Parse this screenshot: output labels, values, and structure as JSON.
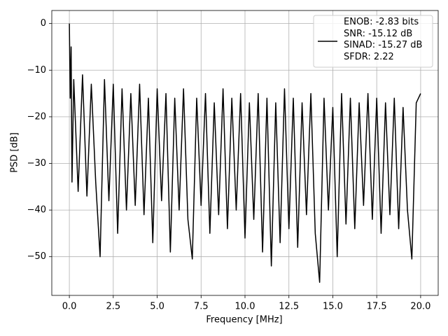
{
  "chart_data": {
    "type": "line",
    "xlabel": "Frequency [MHz]",
    "ylabel": "PSD [dB]",
    "x": [
      0,
      0.05,
      0.1,
      0.15,
      0.25,
      0.5,
      0.75,
      1.0,
      1.25,
      1.5,
      1.75,
      2.0,
      2.25,
      2.5,
      2.75,
      3.0,
      3.25,
      3.5,
      3.75,
      4.0,
      4.25,
      4.5,
      4.75,
      5.0,
      5.25,
      5.5,
      5.75,
      6.0,
      6.25,
      6.5,
      6.75,
      7.0,
      7.25,
      7.5,
      7.75,
      8.0,
      8.25,
      8.5,
      8.75,
      9.0,
      9.25,
      9.5,
      9.75,
      10.0,
      10.25,
      10.5,
      10.75,
      11.0,
      11.25,
      11.5,
      11.75,
      12.0,
      12.25,
      12.5,
      12.75,
      13.0,
      13.25,
      13.5,
      13.75,
      14.0,
      14.25,
      14.5,
      14.75,
      15.0,
      15.25,
      15.5,
      15.75,
      16.0,
      16.25,
      16.5,
      16.75,
      17.0,
      17.25,
      17.5,
      17.75,
      18.0,
      18.25,
      18.5,
      18.75,
      19.0,
      19.25,
      19.5,
      19.75,
      20.0
    ],
    "series": [
      {
        "name": "ENOB: -2.83 bits\nSNR: -15.12 dB\nSINAD: -15.27 dB\nSFDR: 2.22",
        "color": "#000000",
        "values": [
          0,
          -16,
          -5,
          -34,
          -12,
          -36,
          -11,
          -37,
          -13,
          -34,
          -50,
          -12,
          -38,
          -13,
          -45,
          -14,
          -40,
          -15,
          -39,
          -13,
          -41,
          -16,
          -47,
          -14,
          -38,
          -15,
          -49,
          -16,
          -40,
          -14,
          -42,
          -50.5,
          -16,
          -39,
          -15,
          -45,
          -17,
          -41,
          -14,
          -44,
          -16,
          -40,
          -15,
          -46,
          -17,
          -42,
          -15,
          -49,
          -16,
          -52,
          -17,
          -47,
          -14,
          -44,
          -16,
          -48,
          -17,
          -41,
          -15,
          -45,
          -55.5,
          -16,
          -40,
          -18,
          -50,
          -15,
          -43,
          -16,
          -44,
          -17,
          -39,
          -15,
          -42,
          -16,
          -45,
          -17,
          -41,
          -16,
          -44,
          -18,
          -40,
          -50.5,
          -17,
          -15
        ]
      }
    ],
    "xlim": [
      -1,
      21
    ],
    "ylim": [
      -58.3,
      2.8
    ],
    "xticks": [
      {
        "value": 0,
        "label": "0.0"
      },
      2.5,
      {
        "value": 5,
        "label": "5.0"
      },
      7.5,
      {
        "value": 10,
        "label": "10.0"
      },
      12.5,
      {
        "value": 15,
        "label": "15.0"
      },
      17.5,
      {
        "value": 20,
        "label": "20.0"
      }
    ],
    "yticks": [
      {
        "value": -50,
        "label": "−50"
      },
      {
        "value": -40,
        "label": "−40"
      },
      {
        "value": -30,
        "label": "−30"
      },
      {
        "value": -20,
        "label": "−20"
      },
      {
        "value": -10,
        "label": "−10"
      },
      0
    ],
    "grid": true,
    "legend": "upper right"
  }
}
